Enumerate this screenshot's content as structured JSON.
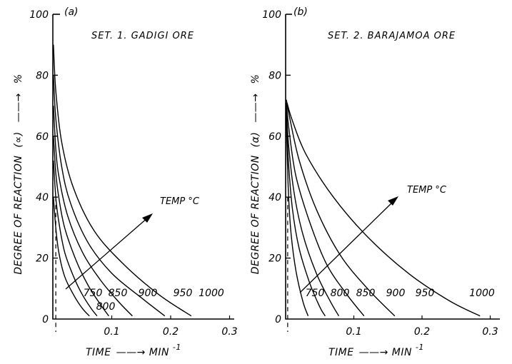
{
  "figure": {
    "x_axis_label": "TIME",
    "x_axis_unit": "MIN",
    "x_axis_unit_exponent": "-1",
    "y_axis_label": "DEGREE OF REACTION",
    "y_axis_symbol_a": "(∝)",
    "y_axis_symbol_b": "(α)",
    "y_axis_unit": "%"
  },
  "chart_data": [
    {
      "type": "line",
      "panel_label": "(a)",
      "title": "SET. 1. GADIGI ORE",
      "xlim": [
        0,
        0.3
      ],
      "ylim": [
        0,
        100
      ],
      "x_ticks": [
        "0.1",
        "0.2",
        "0.3"
      ],
      "y_ticks": [
        "0",
        "20",
        "40",
        "60",
        "80",
        "100"
      ],
      "dashed_reference_x": 0.005,
      "arrow_label": "TEMP °C",
      "series": [
        {
          "name": "750",
          "label": "750",
          "x": [
            0.001,
            0.005,
            0.01,
            0.02,
            0.035,
            0.05,
            0.062
          ],
          "y": [
            40,
            30,
            22,
            14,
            8,
            3.5,
            1
          ]
        },
        {
          "name": "800",
          "label": "800",
          "x": [
            0.001,
            0.005,
            0.01,
            0.02,
            0.035,
            0.05,
            0.065,
            0.075
          ],
          "y": [
            52,
            40,
            32,
            22,
            14,
            8,
            3.5,
            1
          ]
        },
        {
          "name": "850",
          "label": "850",
          "x": [
            0.001,
            0.005,
            0.01,
            0.02,
            0.04,
            0.06,
            0.08,
            0.095
          ],
          "y": [
            60,
            48,
            40,
            30,
            19,
            11,
            5,
            1
          ]
        },
        {
          "name": "900",
          "label": "900",
          "x": [
            0.001,
            0.005,
            0.01,
            0.025,
            0.05,
            0.08,
            0.11,
            0.135
          ],
          "y": [
            70,
            56,
            47,
            34,
            22,
            13,
            6,
            1
          ]
        },
        {
          "name": "950",
          "label": "950",
          "x": [
            0.001,
            0.005,
            0.015,
            0.03,
            0.06,
            0.1,
            0.15,
            0.19
          ],
          "y": [
            80,
            66,
            50,
            38,
            25,
            15,
            7,
            1
          ]
        },
        {
          "name": "1000",
          "label": "1000",
          "x": [
            0.001,
            0.005,
            0.015,
            0.035,
            0.07,
            0.12,
            0.18,
            0.235
          ],
          "y": [
            90,
            75,
            58,
            43,
            29,
            18,
            8,
            1
          ]
        }
      ]
    },
    {
      "type": "line",
      "panel_label": "(b)",
      "title": "SET. 2. BARAJAMOA ORE",
      "xlim": [
        0,
        0.3
      ],
      "ylim": [
        0,
        100
      ],
      "x_ticks": [
        "0.1",
        "0.2",
        "0.3"
      ],
      "y_ticks": [
        "0",
        "20",
        "40",
        "60",
        "80",
        "100"
      ],
      "dashed_reference_x": 0.003,
      "arrow_label": "TEMP °C",
      "series": [
        {
          "name": "750",
          "label": "750",
          "x": [
            0.001,
            0.004,
            0.008,
            0.015,
            0.025,
            0.033
          ],
          "y": [
            66,
            42,
            28,
            16,
            6,
            1
          ]
        },
        {
          "name": "800",
          "label": "800",
          "x": [
            0.001,
            0.004,
            0.01,
            0.02,
            0.035,
            0.05,
            0.058
          ],
          "y": [
            68,
            52,
            36,
            23,
            12,
            4,
            1
          ]
        },
        {
          "name": "850",
          "label": "850",
          "x": [
            0.001,
            0.004,
            0.012,
            0.025,
            0.045,
            0.065,
            0.078
          ],
          "y": [
            70,
            58,
            42,
            28,
            15,
            6,
            1
          ]
        },
        {
          "name": "900",
          "label": "900",
          "x": [
            0.001,
            0.005,
            0.015,
            0.035,
            0.06,
            0.09,
            0.115
          ],
          "y": [
            71,
            62,
            47,
            32,
            18,
            8,
            1
          ]
        },
        {
          "name": "950",
          "label": "950",
          "x": [
            0.001,
            0.006,
            0.02,
            0.045,
            0.08,
            0.12,
            0.16
          ],
          "y": [
            72,
            66,
            52,
            36,
            21,
            10,
            1
          ]
        },
        {
          "name": "1000",
          "label": "1000",
          "x": [
            0.002,
            0.01,
            0.03,
            0.07,
            0.12,
            0.18,
            0.24,
            0.285
          ],
          "y": [
            71,
            65,
            54,
            40,
            27,
            15,
            6,
            1
          ]
        }
      ]
    }
  ]
}
